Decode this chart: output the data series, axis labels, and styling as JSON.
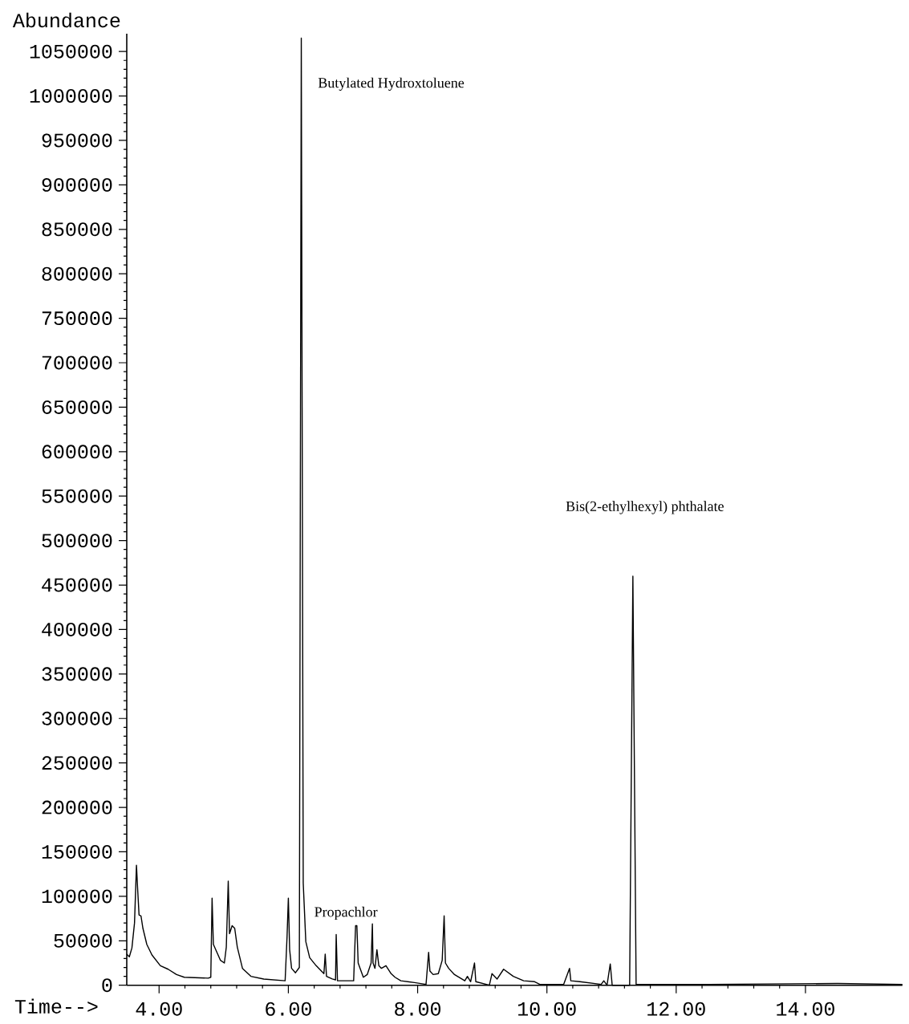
{
  "chart_data": {
    "type": "line",
    "xlabel": "Time-->",
    "ylabel": "Abundance",
    "color": "#000000",
    "marker": "none",
    "grid": false,
    "xlim": [
      3.5,
      15.5
    ],
    "ylim": [
      0,
      1070000
    ],
    "xticks": [
      {
        "value": 4,
        "label": "4.00"
      },
      {
        "value": 6,
        "label": "6.00"
      },
      {
        "value": 8,
        "label": "8.00"
      },
      {
        "value": 10,
        "label": "10.00"
      },
      {
        "value": 12,
        "label": "12.00"
      },
      {
        "value": 14,
        "label": "14.00"
      }
    ],
    "yticks": [
      0,
      50000,
      100000,
      150000,
      200000,
      250000,
      300000,
      350000,
      400000,
      450000,
      500000,
      550000,
      600000,
      650000,
      700000,
      750000,
      800000,
      850000,
      900000,
      950000,
      1000000,
      1050000
    ],
    "x": [
      3.5,
      3.54,
      3.58,
      3.62,
      3.65,
      3.67,
      3.69,
      3.72,
      3.75,
      3.81,
      3.89,
      4.02,
      4.14,
      4.27,
      4.39,
      4.76,
      4.8,
      4.82,
      4.84,
      4.95,
      5.01,
      5.04,
      5.07,
      5.09,
      5.13,
      5.17,
      5.21,
      5.29,
      5.42,
      5.62,
      5.95,
      5.98,
      6.0,
      6.02,
      6.05,
      6.11,
      6.17,
      6.2,
      6.23,
      6.27,
      6.33,
      6.43,
      6.55,
      6.57,
      6.59,
      6.68,
      6.73,
      6.74,
      6.76,
      7.01,
      7.04,
      7.06,
      7.08,
      7.11,
      7.16,
      7.22,
      7.28,
      7.3,
      7.31,
      7.34,
      7.37,
      7.4,
      7.44,
      7.51,
      7.59,
      7.65,
      7.74,
      7.95,
      8.13,
      8.17,
      8.19,
      8.24,
      8.32,
      8.38,
      8.41,
      8.43,
      8.48,
      8.57,
      8.73,
      8.77,
      8.82,
      8.88,
      8.9,
      9.11,
      9.15,
      9.23,
      9.33,
      9.48,
      9.64,
      9.81,
      9.89,
      10.26,
      10.35,
      10.37,
      10.51,
      10.84,
      10.88,
      10.93,
      10.98,
      11.01,
      11.28,
      11.33,
      11.38,
      11.53,
      12.5,
      14.5,
      15.5
    ],
    "values": [
      35000,
      32000,
      42000,
      70000,
      135000,
      106000,
      79000,
      78000,
      64000,
      46000,
      34000,
      22000,
      18000,
      12000,
      9000,
      8000,
      9000,
      98000,
      46000,
      28000,
      25000,
      43000,
      117000,
      58000,
      67000,
      64000,
      43000,
      19000,
      10000,
      7000,
      5000,
      55000,
      98000,
      40000,
      19000,
      14000,
      20000,
      1065000,
      115000,
      49000,
      31000,
      22000,
      13000,
      35000,
      10000,
      7000,
      6000,
      57000,
      5000,
      5000,
      67000,
      67000,
      25000,
      19000,
      9000,
      12000,
      25000,
      69000,
      25000,
      19000,
      40000,
      22000,
      19000,
      22000,
      13000,
      9000,
      5000,
      3000,
      1000,
      37000,
      16000,
      12000,
      13000,
      28000,
      78000,
      25000,
      19000,
      12000,
      5000,
      10000,
      4000,
      25000,
      4000,
      0,
      13000,
      7000,
      18000,
      10000,
      5000,
      4000,
      1000,
      1000,
      19000,
      5000,
      4000,
      1000,
      5000,
      0,
      24000,
      0,
      0,
      460000,
      1000,
      1000,
      1000,
      2000,
      1000
    ],
    "annotations": [
      "Butylated Hydroxtoluene",
      "Propachlor",
      "Bis(2-ethylhexyl) phthalate"
    ]
  }
}
